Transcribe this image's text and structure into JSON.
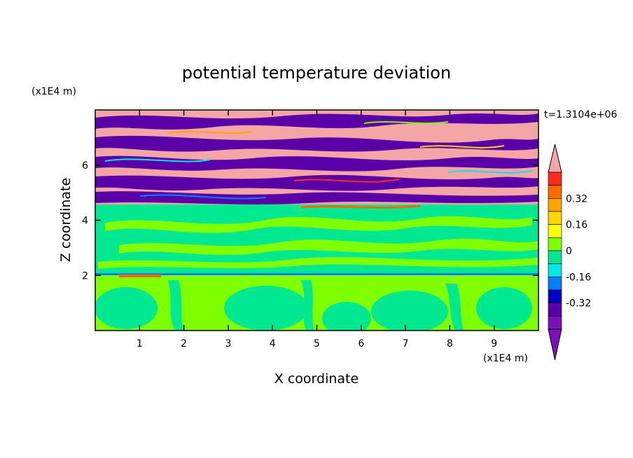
{
  "chart_data": {
    "type": "heatmap",
    "title": "potential temperature deviation",
    "xlabel": "X coordinate",
    "ylabel": "Z coordinate",
    "x_unit": "(x1E4 m)",
    "y_unit": "(x1E4 m)",
    "time_label": "t=1.3104e+06",
    "xlim": [
      0,
      10
    ],
    "ylim": [
      0,
      8
    ],
    "x_ticks": [
      "1",
      "2",
      "3",
      "4",
      "5",
      "6",
      "7",
      "8",
      "9"
    ],
    "y_ticks": [
      "2",
      "4",
      "6"
    ],
    "colorbar": {
      "tick_labels": [
        "0.32",
        "0.16",
        "0",
        "-0.16",
        "-0.32"
      ],
      "levels_top_to_bottom": [
        0.48,
        0.4,
        0.32,
        0.24,
        0.16,
        0.08,
        0,
        -0.08,
        -0.16,
        -0.24,
        -0.32,
        -0.4
      ],
      "colors_top_to_bottom": [
        "#f4a6a6",
        "#ff2a1a",
        "#ff6a00",
        "#ffa500",
        "#ffd500",
        "#ffff00",
        "#80ff00",
        "#00e890",
        "#00e8e8",
        "#0080ff",
        "#0000c8",
        "#5a00a8",
        "#7a10b8"
      ],
      "extend": "both"
    }
  }
}
